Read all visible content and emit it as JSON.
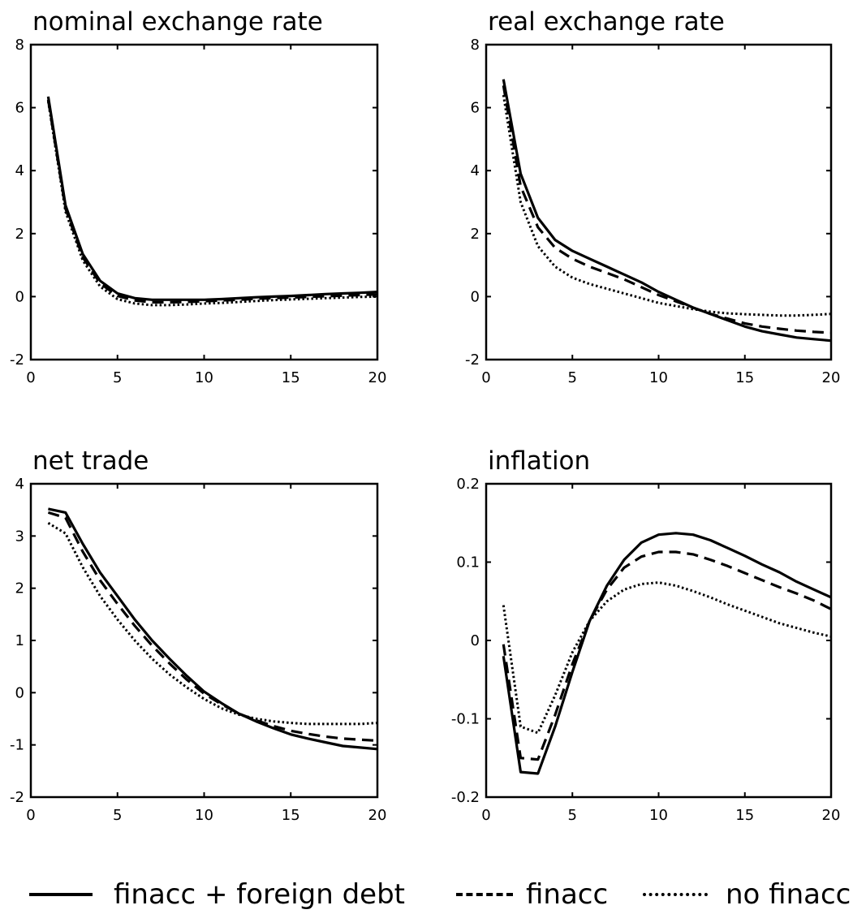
{
  "legend": [
    {
      "label": "finacc + foreign debt",
      "style": "solid"
    },
    {
      "label": "finacc",
      "style": "dashed"
    },
    {
      "label": "no finacc",
      "style": "dotted"
    }
  ],
  "chart_data": [
    {
      "type": "line",
      "title": "nominal exchange  rate",
      "xlim": [
        0,
        20
      ],
      "ylim": [
        -2,
        8
      ],
      "xticks": [
        0,
        5,
        10,
        15,
        20
      ],
      "yticks": [
        -2,
        0,
        2,
        4,
        6,
        8
      ],
      "x": [
        1,
        2,
        3,
        4,
        5,
        6,
        7,
        8,
        9,
        10,
        11,
        12,
        13,
        14,
        15,
        16,
        17,
        18,
        19,
        20
      ],
      "series": [
        {
          "name": "finacc + foreign debt",
          "style": "solid",
          "values": [
            6.35,
            2.9,
            1.35,
            0.5,
            0.1,
            -0.05,
            -0.1,
            -0.1,
            -0.1,
            -0.1,
            -0.08,
            -0.05,
            -0.02,
            0.0,
            0.02,
            0.05,
            0.08,
            0.1,
            0.12,
            0.15
          ]
        },
        {
          "name": "finacc",
          "style": "dashed",
          "values": [
            6.25,
            2.8,
            1.25,
            0.42,
            0.02,
            -0.12,
            -0.18,
            -0.18,
            -0.17,
            -0.15,
            -0.12,
            -0.1,
            -0.07,
            -0.05,
            -0.03,
            -0.01,
            0.01,
            0.03,
            0.05,
            0.07
          ]
        },
        {
          "name": "no finacc",
          "style": "dotted",
          "values": [
            6.2,
            2.7,
            1.15,
            0.32,
            -0.08,
            -0.22,
            -0.27,
            -0.27,
            -0.25,
            -0.22,
            -0.2,
            -0.17,
            -0.14,
            -0.11,
            -0.09,
            -0.07,
            -0.05,
            -0.03,
            -0.01,
            0.0
          ]
        }
      ]
    },
    {
      "type": "line",
      "title": "real exchange  rate",
      "xlim": [
        0,
        20
      ],
      "ylim": [
        -2,
        8
      ],
      "xticks": [
        0,
        5,
        10,
        15,
        20
      ],
      "yticks": [
        -2,
        0,
        2,
        4,
        6,
        8
      ],
      "x": [
        1,
        2,
        3,
        4,
        5,
        6,
        7,
        8,
        9,
        10,
        11,
        12,
        13,
        14,
        15,
        16,
        17,
        18,
        19,
        20
      ],
      "series": [
        {
          "name": "finacc + foreign debt",
          "style": "solid",
          "values": [
            6.9,
            3.9,
            2.5,
            1.8,
            1.45,
            1.2,
            0.95,
            0.7,
            0.45,
            0.15,
            -0.1,
            -0.35,
            -0.55,
            -0.75,
            -0.95,
            -1.1,
            -1.2,
            -1.3,
            -1.35,
            -1.4
          ]
        },
        {
          "name": "finacc",
          "style": "dashed",
          "values": [
            6.7,
            3.5,
            2.2,
            1.55,
            1.2,
            0.95,
            0.75,
            0.55,
            0.3,
            0.05,
            -0.15,
            -0.35,
            -0.55,
            -0.7,
            -0.85,
            -0.95,
            -1.02,
            -1.08,
            -1.12,
            -1.15
          ]
        },
        {
          "name": "no finacc",
          "style": "dotted",
          "values": [
            6.4,
            3.0,
            1.6,
            0.95,
            0.6,
            0.4,
            0.25,
            0.1,
            -0.05,
            -0.2,
            -0.3,
            -0.4,
            -0.48,
            -0.53,
            -0.56,
            -0.58,
            -0.6,
            -0.6,
            -0.58,
            -0.55
          ]
        }
      ]
    },
    {
      "type": "line",
      "title": "net trade",
      "xlim": [
        0,
        20
      ],
      "ylim": [
        -2,
        4
      ],
      "xticks": [
        0,
        5,
        10,
        15,
        20
      ],
      "yticks": [
        -2,
        -1,
        0,
        1,
        2,
        3,
        4
      ],
      "x": [
        1,
        2,
        3,
        4,
        5,
        6,
        7,
        8,
        9,
        10,
        11,
        12,
        13,
        14,
        15,
        16,
        17,
        18,
        19,
        20
      ],
      "series": [
        {
          "name": "finacc + foreign debt",
          "style": "solid",
          "values": [
            3.52,
            3.45,
            2.85,
            2.3,
            1.85,
            1.4,
            1.0,
            0.65,
            0.32,
            0.02,
            -0.2,
            -0.4,
            -0.55,
            -0.68,
            -0.8,
            -0.88,
            -0.95,
            -1.02,
            -1.05,
            -1.08
          ]
        },
        {
          "name": "finacc",
          "style": "dashed",
          "values": [
            3.45,
            3.35,
            2.7,
            2.15,
            1.7,
            1.28,
            0.9,
            0.56,
            0.25,
            -0.02,
            -0.22,
            -0.4,
            -0.53,
            -0.64,
            -0.73,
            -0.79,
            -0.84,
            -0.88,
            -0.9,
            -0.92
          ]
        },
        {
          "name": "no finacc",
          "style": "dotted",
          "values": [
            3.25,
            3.05,
            2.4,
            1.85,
            1.4,
            1.0,
            0.65,
            0.35,
            0.1,
            -0.12,
            -0.3,
            -0.42,
            -0.5,
            -0.55,
            -0.58,
            -0.6,
            -0.6,
            -0.6,
            -0.6,
            -0.58
          ]
        }
      ]
    },
    {
      "type": "line",
      "title": "inflation",
      "xlim": [
        0,
        20
      ],
      "ylim": [
        -0.2,
        0.2
      ],
      "xticks": [
        0,
        5,
        10,
        15,
        20
      ],
      "yticks": [
        -0.2,
        -0.1,
        0,
        0.1,
        0.2
      ],
      "x": [
        1,
        2,
        3,
        4,
        5,
        6,
        7,
        8,
        9,
        10,
        11,
        12,
        13,
        14,
        15,
        16,
        17,
        18,
        19,
        20
      ],
      "series": [
        {
          "name": "finacc + foreign debt",
          "style": "solid",
          "values": [
            -0.02,
            -0.168,
            -0.17,
            -0.11,
            -0.04,
            0.025,
            0.07,
            0.103,
            0.125,
            0.135,
            0.137,
            0.135,
            0.128,
            0.118,
            0.108,
            0.097,
            0.087,
            0.075,
            0.065,
            0.055
          ]
        },
        {
          "name": "finacc",
          "style": "dashed",
          "values": [
            -0.005,
            -0.15,
            -0.152,
            -0.095,
            -0.03,
            0.025,
            0.065,
            0.093,
            0.107,
            0.113,
            0.113,
            0.11,
            0.103,
            0.095,
            0.086,
            0.077,
            0.068,
            0.06,
            0.051,
            0.04
          ]
        },
        {
          "name": "no finacc",
          "style": "dotted",
          "values": [
            0.045,
            -0.11,
            -0.118,
            -0.07,
            -0.015,
            0.025,
            0.05,
            0.065,
            0.072,
            0.074,
            0.07,
            0.063,
            0.055,
            0.046,
            0.038,
            0.03,
            0.022,
            0.016,
            0.01,
            0.005
          ]
        }
      ]
    }
  ]
}
